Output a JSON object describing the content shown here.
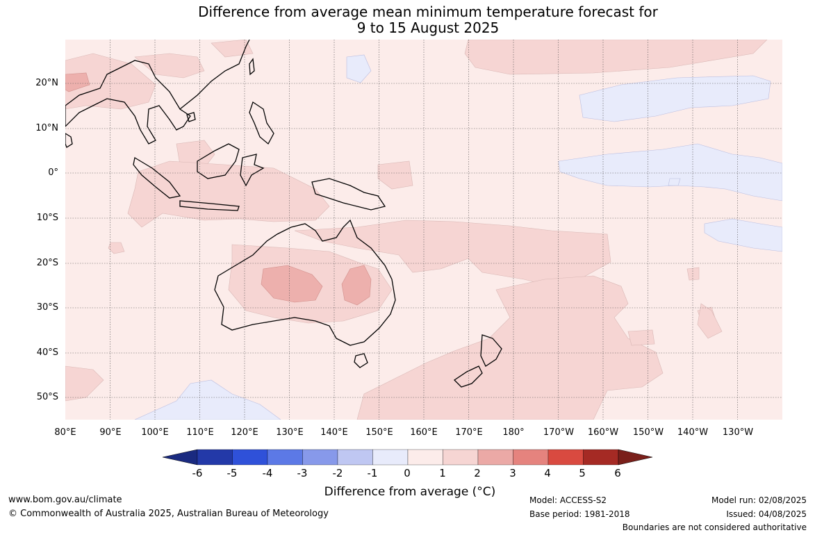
{
  "title": {
    "line1": "Difference from average mean minimum temperature forecast for",
    "line2": "9 to 15 August 2025"
  },
  "axes": {
    "lat_ticks": [
      "20°N",
      "10°N",
      "0°",
      "10°S",
      "20°S",
      "30°S",
      "40°S",
      "50°S"
    ],
    "lon_ticks": [
      "80°E",
      "90°E",
      "100°E",
      "110°E",
      "120°E",
      "130°E",
      "140°E",
      "150°E",
      "160°E",
      "170°E",
      "180°",
      "170°W",
      "160°W",
      "150°W",
      "140°W",
      "130°W"
    ],
    "lat_range": [
      -55,
      29
    ],
    "lon_range": [
      80,
      240
    ]
  },
  "colorbar": {
    "ticks": [
      "-6",
      "-5",
      "-4",
      "-3",
      "-2",
      "-1",
      "0",
      "1",
      "2",
      "3",
      "4",
      "5",
      "6"
    ],
    "colors": [
      "#2339a8",
      "#2f51d9",
      "#5c79e6",
      "#8799ea",
      "#bfc7f2",
      "#e8ebfb",
      "#fcecea",
      "#f6d5d3",
      "#eba9a6",
      "#e5837e",
      "#d94a40",
      "#a52a24"
    ],
    "low_extend_color": "#1a2a80",
    "high_extend_color": "#7a1f1a",
    "label": "Difference from average (°C)"
  },
  "map_colors": {
    "background": "#fcecea",
    "band_1_2": "#f6d5d3",
    "band_2_3": "#edb0ad",
    "band_neg_1_0": "#e8ebfb",
    "land_outline": "#000000",
    "grid": "#555555"
  },
  "footer": {
    "website": "www.bom.gov.au/climate",
    "copyright": "© Commonwealth of Australia 2025, Australian Bureau of Meteorology",
    "model": "Model: ACCESS-S2",
    "base_period": "Base period: 1981-2018",
    "model_run": "Model run: 02/08/2025",
    "issued": "Issued: 04/08/2025",
    "disclaimer": "Boundaries are not considered authoritative"
  }
}
